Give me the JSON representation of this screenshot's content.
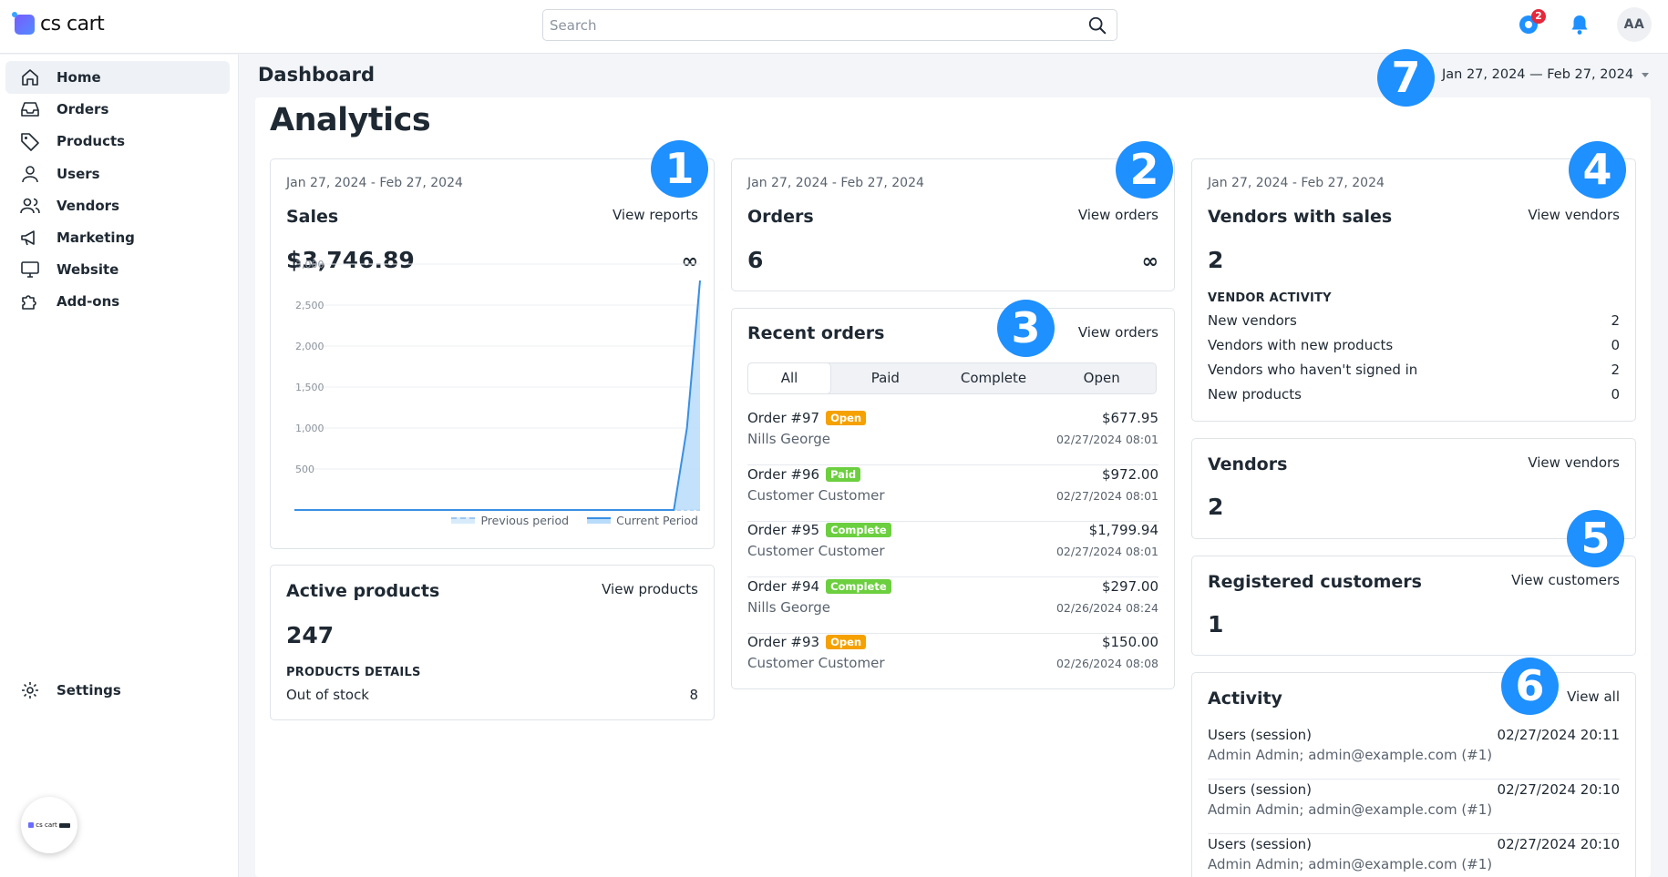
{
  "brand": {
    "name": "cs cart"
  },
  "search": {
    "placeholder": "Search"
  },
  "topbar": {
    "notification_badge": "2",
    "avatar_initials": "AA"
  },
  "sidebar": {
    "items": [
      {
        "label": "Home",
        "icon": "home-icon",
        "active": true
      },
      {
        "label": "Orders",
        "icon": "inbox-icon"
      },
      {
        "label": "Products",
        "icon": "tag-icon"
      },
      {
        "label": "Users",
        "icon": "user-icon"
      },
      {
        "label": "Vendors",
        "icon": "users-icon"
      },
      {
        "label": "Marketing",
        "icon": "megaphone-icon"
      },
      {
        "label": "Website",
        "icon": "monitor-icon"
      },
      {
        "label": "Add-ons",
        "icon": "puzzle-icon"
      }
    ],
    "settings_label": "Settings",
    "mini_logo_text": "cs cart"
  },
  "header": {
    "title": "Dashboard",
    "date_range": "Jan 27, 2024 — Feb 27, 2024"
  },
  "main": {
    "heading": "Analytics"
  },
  "sales": {
    "date": "Jan 27, 2024 - Feb 27, 2024",
    "title": "Sales",
    "link": "View reports",
    "value": "$3,746.89",
    "change": "∞",
    "legend_previous": "Previous period",
    "legend_current": "Current Period"
  },
  "chart_data": {
    "type": "area",
    "y_ticks": [
      "3,000",
      "2,500",
      "2,000",
      "1,500",
      "1,000",
      "500"
    ],
    "ylim": [
      0,
      3000
    ],
    "series": [
      {
        "name": "Previous period",
        "values": [
          0,
          0,
          0,
          0,
          0,
          0,
          0,
          0,
          0,
          0,
          0,
          0,
          0,
          0,
          0,
          0,
          0,
          0,
          0,
          0,
          0,
          0,
          0,
          0,
          0,
          0,
          0,
          0,
          0,
          0,
          0,
          0
        ]
      },
      {
        "name": "Current Period",
        "values": [
          0,
          0,
          0,
          0,
          0,
          0,
          0,
          0,
          0,
          0,
          0,
          0,
          0,
          0,
          0,
          0,
          0,
          0,
          0,
          0,
          0,
          0,
          0,
          0,
          0,
          0,
          0,
          0,
          0,
          0,
          1000,
          2800
        ]
      }
    ]
  },
  "active_products": {
    "title": "Active products",
    "link": "View products",
    "value": "247",
    "details_heading": "PRODUCTS DETAILS",
    "out_of_stock_label": "Out of stock",
    "out_of_stock_value": "8"
  },
  "orders_card": {
    "date": "Jan 27, 2024 - Feb 27, 2024",
    "title": "Orders",
    "link": "View orders",
    "value": "6",
    "change": "∞"
  },
  "recent_orders": {
    "title": "Recent orders",
    "link": "View orders",
    "tabs": [
      "All",
      "Paid",
      "Complete",
      "Open"
    ],
    "rows": [
      {
        "id": "Order #97",
        "status": "Open",
        "status_color": "#f5a100",
        "customer": "Nills George",
        "total": "$677.95",
        "date": "02/27/2024 08:01"
      },
      {
        "id": "Order #96",
        "status": "Paid",
        "status_color": "#6ccf3f",
        "customer": "Customer Customer",
        "total": "$972.00",
        "date": "02/27/2024 08:01"
      },
      {
        "id": "Order #95",
        "status": "Complete",
        "status_color": "#6ccf3f",
        "customer": "Customer Customer",
        "total": "$1,799.94",
        "date": "02/27/2024 08:01"
      },
      {
        "id": "Order #94",
        "status": "Complete",
        "status_color": "#6ccf3f",
        "customer": "Nills George",
        "total": "$297.00",
        "date": "02/26/2024 08:24"
      },
      {
        "id": "Order #93",
        "status": "Open",
        "status_color": "#f5a100",
        "customer": "Customer Customer",
        "total": "$150.00",
        "date": "02/26/2024 08:08"
      }
    ]
  },
  "vendors_sales": {
    "date": "Jan 27, 2024 - Feb 27, 2024",
    "title": "Vendors with sales",
    "link": "View vendors",
    "value": "2",
    "activity_heading": "VENDOR ACTIVITY",
    "rows": [
      {
        "label": "New vendors",
        "value": "2"
      },
      {
        "label": "Vendors with new products",
        "value": "0"
      },
      {
        "label": "Vendors who haven't signed in",
        "value": "2"
      },
      {
        "label": "New products",
        "value": "0"
      }
    ]
  },
  "vendors": {
    "title": "Vendors",
    "link": "View vendors",
    "value": "2"
  },
  "customers": {
    "title": "Registered customers",
    "link": "View customers",
    "value": "1"
  },
  "activity": {
    "title": "Activity",
    "link": "View all",
    "rows": [
      {
        "title": "Users (session)",
        "time": "02/27/2024 20:11",
        "detail": "Admin Admin; admin@example.com (#1)"
      },
      {
        "title": "Users (session)",
        "time": "02/27/2024 20:10",
        "detail": "Admin Admin; admin@example.com (#1)"
      },
      {
        "title": "Users (session)",
        "time": "02/27/2024 20:10",
        "detail": "Admin Admin; admin@example.com (#1)"
      }
    ]
  },
  "markers": [
    "1",
    "2",
    "3",
    "4",
    "5",
    "6",
    "7"
  ],
  "colors": {
    "accent": "#1e90ff",
    "open": "#f5a100",
    "paid": "#6ccf3f"
  }
}
